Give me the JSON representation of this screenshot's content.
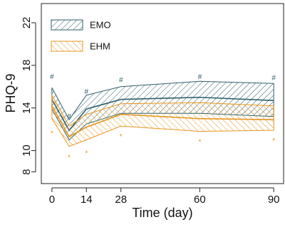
{
  "chart_data": {
    "type": "band-line",
    "x_label": "Time (day)",
    "y_label": "PHQ-9",
    "x": [
      0,
      7,
      14,
      28,
      60,
      90
    ],
    "xlim": [
      -4.3,
      94
    ],
    "xticks": [
      0,
      14,
      28,
      60,
      90
    ],
    "ylim": [
      6.9,
      23.8
    ],
    "yticks": [
      8,
      10,
      14,
      18,
      22
    ],
    "legend": "top-left",
    "series": [
      {
        "name": "EMO",
        "color": "#2f5f6a",
        "hatch": "up",
        "values": [
          14.8,
          11.9,
          13.9,
          14.8,
          15.0,
          14.7
        ],
        "upper": [
          15.9,
          12.9,
          15.2,
          16.0,
          16.5,
          16.3
        ],
        "lower": [
          13.9,
          11.0,
          12.5,
          13.5,
          13.5,
          13.2
        ],
        "marker": "#",
        "marker_y": [
          16.9,
          13.2,
          15.5,
          16.6,
          16.9,
          16.8
        ]
      },
      {
        "name": "EHM",
        "color": "#e8951f",
        "hatch": "down",
        "values": [
          14.2,
          11.3,
          12.2,
          13.4,
          13.0,
          12.9
        ],
        "upper": [
          15.2,
          12.3,
          13.4,
          14.4,
          14.5,
          14.2
        ],
        "lower": [
          13.0,
          10.4,
          11.0,
          12.3,
          11.8,
          11.9
        ],
        "marker": "*",
        "marker_y": [
          11.6,
          9.3,
          9.7,
          11.3,
          10.8,
          10.9
        ]
      }
    ]
  }
}
